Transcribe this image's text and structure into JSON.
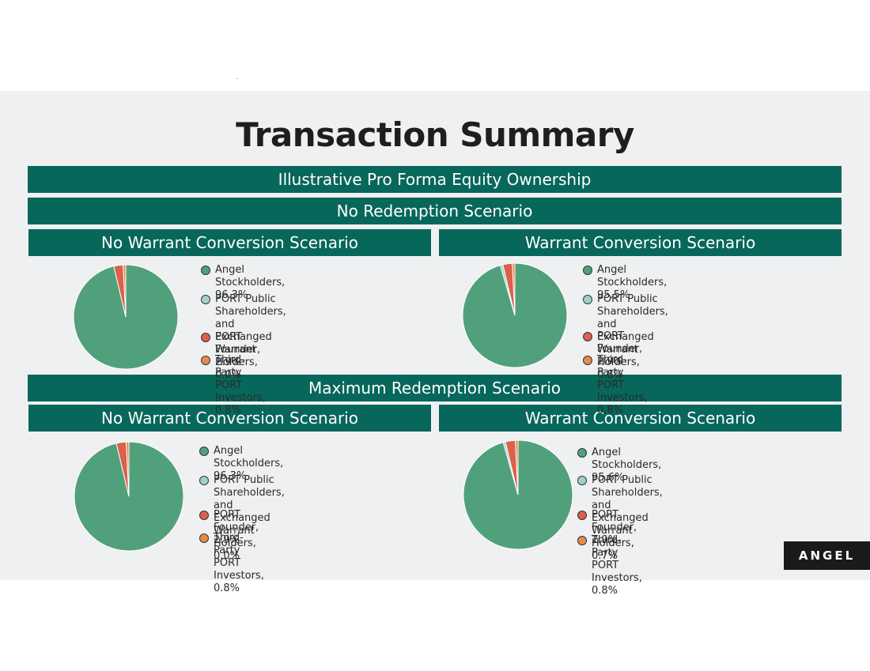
{
  "title": "Transaction Summary",
  "header_bar": "Illustrative Pro Forma Equity Ownership",
  "scenarios": [
    {
      "label": "No Redemption Scenario"
    },
    {
      "label": "Maximum Redemption Scenario"
    }
  ],
  "sub_labels": {
    "no_warrant": "No Warrant Conversion Scenario",
    "warrant": "Warrant Conversion Scenario"
  },
  "logo": "ANGEL",
  "colors": {
    "angel": "#51a07c",
    "port_public": "#9ed2ca",
    "port_founder": "#d9614d",
    "third_party": "#e38c50",
    "bar": "#07675b"
  },
  "chart_data": [
    {
      "type": "pie",
      "title": "No Warrant Conversion Scenario",
      "scenario": "No Redemption Scenario",
      "labels": [
        "Angel Stockholders",
        "PORT Public Shareholders, and Exchanged Warrant Holders",
        "PORT Founder",
        "Third-Party PORT Investors"
      ],
      "values": [
        96.3,
        0.0,
        2.9,
        0.8
      ],
      "legend_text": [
        "Angel Stockholders, 96.3%",
        "PORT Public Shareholders, and\nExchanged Warrant Holders, 0.0%",
        "PORT Founder, 2.9%",
        "Third-Party PORT Investors, 0.8%"
      ]
    },
    {
      "type": "pie",
      "title": "Warrant Conversion Scenario",
      "scenario": "No Redemption Scenario",
      "labels": [
        "Angel Stockholders",
        "PORT Public Shareholders, and Exchanged Warrant Holders",
        "PORT Founder",
        "Third-Party PORT Investors"
      ],
      "values": [
        95.5,
        0.8,
        2.9,
        0.8
      ],
      "legend_text": [
        "Angel Stockholders, 95.5%",
        "PORT Public Shareholders, and\nExchanged Warrant Holders, 0.8%",
        "PORT Founder, 2.9%",
        "Third-Party PORT Investors, 0.8%"
      ]
    },
    {
      "type": "pie",
      "title": "No Warrant Conversion Scenario",
      "scenario": "Maximum Redemption Scenario",
      "labels": [
        "Angel Stockholders",
        "PORT Public Shareholders, and Exchanged Warrant Holders",
        "PORT Founder",
        "Third-Party PORT Investors"
      ],
      "values": [
        96.3,
        0.0,
        2.9,
        0.8
      ],
      "legend_text": [
        "Angel Stockholders, 96.3%",
        "PORT Public Shareholders, and\nExchanged Warrant Holders, 0.0%",
        "PORT Founder, 2.9%",
        "Third-Party PORT Investors, 0.8%"
      ]
    },
    {
      "type": "pie",
      "title": "Warrant Conversion Scenario",
      "scenario": "Maximum Redemption Scenario",
      "labels": [
        "Angel Stockholders",
        "PORT Public Shareholders, and Exchanged Warrant Holders",
        "PORT Founder",
        "Third-Party PORT Investors"
      ],
      "values": [
        95.6,
        0.7,
        2.9,
        0.8
      ],
      "legend_text": [
        "Angel Stockholders, 95.6%",
        "PORT Public Shareholders, and\nExchanged Warrant Holders, 0.7%",
        "PORT Founder, 2.9%",
        "Third-Party PORT Investors, 0.8%"
      ]
    }
  ]
}
